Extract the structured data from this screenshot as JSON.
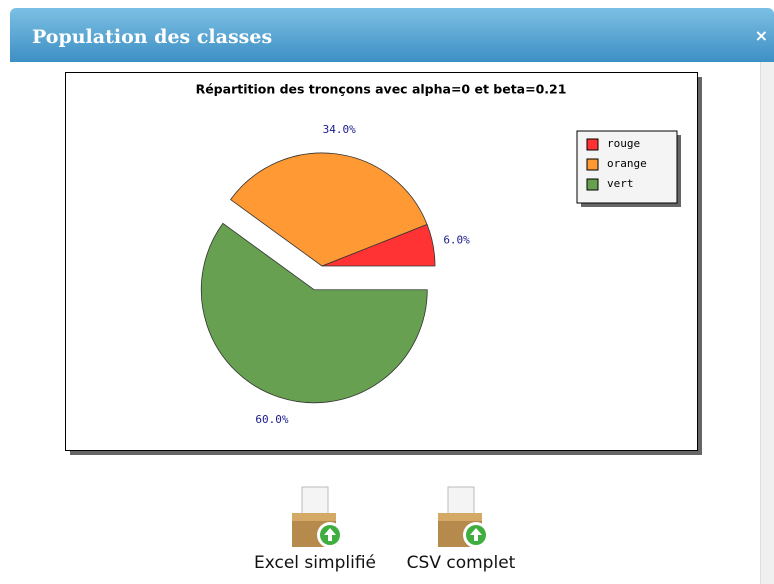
{
  "dialog": {
    "title": "Population des classes",
    "close": "×"
  },
  "chart_data": {
    "type": "pie",
    "title": "Répartition des tronçons avec alpha=0 et beta=0.21",
    "categories": [
      "rouge",
      "orange",
      "vert"
    ],
    "values": [
      6,
      34,
      60
    ],
    "value_labels": [
      "6.0%",
      "34.0%",
      "60.0%"
    ],
    "colors": [
      "#ff3333",
      "#ff9933",
      "#66a050"
    ],
    "legend": "top-right"
  },
  "buttons": [
    "Excel simplifié",
    "CSV complet"
  ]
}
